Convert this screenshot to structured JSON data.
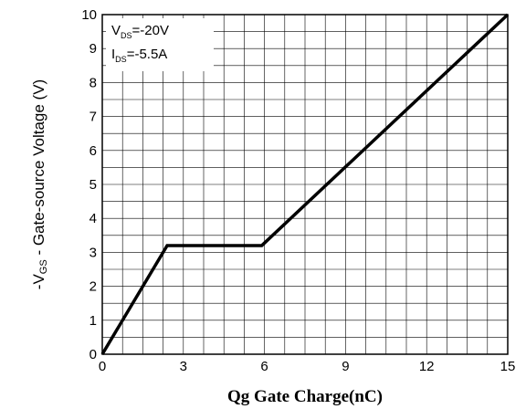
{
  "chart_data": {
    "type": "line",
    "xlabel": "Qg Gate Charge(nC)",
    "ylabel": {
      "prefix": "-V",
      "subscript": "GS",
      "suffix": " - Gate-source Voltage (V)"
    },
    "xlim": [
      0,
      15
    ],
    "ylim": [
      0,
      10
    ],
    "x_ticks": [
      0,
      3,
      6,
      9,
      12,
      15
    ],
    "y_ticks": [
      0,
      1,
      2,
      3,
      4,
      5,
      6,
      7,
      8,
      9,
      10
    ],
    "x_tick_labels": [
      "0",
      "3",
      "6",
      "9",
      "12",
      "15"
    ],
    "y_tick_labels": [
      "0",
      "1",
      "2",
      "3",
      "4",
      "5",
      "6",
      "7",
      "8",
      "9",
      "10"
    ],
    "x_minor_step": 0.75,
    "y_minor_step": 0.5,
    "grid": true,
    "series": [
      {
        "x": [
          0,
          2.4,
          5.9,
          15
        ],
        "y": [
          0,
          3.2,
          3.2,
          10
        ]
      }
    ],
    "annotation": [
      {
        "main": "V",
        "sub": "DS",
        "value": "=-20V"
      },
      {
        "main": "I",
        "sub": "DS",
        "value": "=-5.5A"
      }
    ],
    "colors": {
      "line": "#000000",
      "grid": "#000000",
      "background": "#ffffff"
    }
  }
}
